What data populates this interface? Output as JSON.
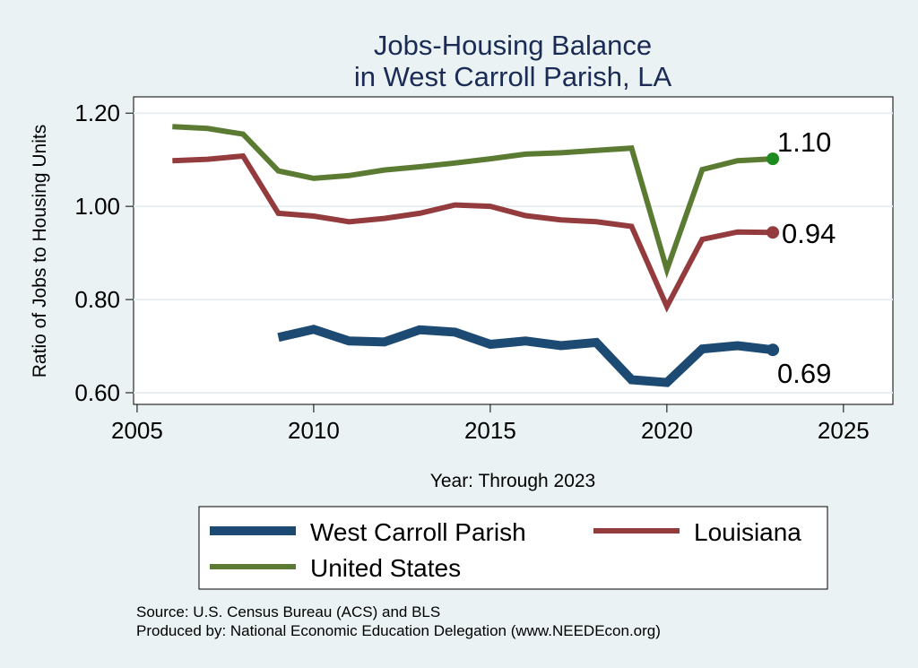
{
  "chart_data": {
    "type": "line",
    "title": [
      "Jobs-Housing Balance",
      "in West Carroll Parish, LA"
    ],
    "xlabel": "Year: Through 2023",
    "ylabel": "Ratio of Jobs to Housing Units",
    "xlim": [
      2004.9,
      2026.4
    ],
    "ylim": [
      0.575,
      1.235
    ],
    "xticks": [
      2005,
      2010,
      2015,
      2020,
      2025
    ],
    "yticks": [
      0.6,
      0.8,
      1.0,
      1.2
    ],
    "ytick_labels": [
      "0.60",
      "0.80",
      "1.00",
      "1.20"
    ],
    "grid": "horizontal",
    "legend_position": "bottom",
    "series": [
      {
        "name": "West Carroll Parish",
        "color": "#1c4a72",
        "end_label": "0.69",
        "x": [
          2009,
          2010,
          2011,
          2012,
          2013,
          2014,
          2015,
          2016,
          2017,
          2018,
          2019,
          2020,
          2021,
          2022,
          2023
        ],
        "y": [
          0.719,
          0.736,
          0.711,
          0.709,
          0.735,
          0.73,
          0.704,
          0.711,
          0.701,
          0.708,
          0.628,
          0.622,
          0.694,
          0.701,
          0.692
        ]
      },
      {
        "name": "Louisiana",
        "color": "#943b3d",
        "end_label": "0.94",
        "x": [
          2006,
          2007,
          2008,
          2009,
          2010,
          2011,
          2012,
          2013,
          2014,
          2015,
          2016,
          2017,
          2018,
          2019,
          2020,
          2021,
          2022,
          2023
        ],
        "y": [
          1.098,
          1.101,
          1.108,
          0.985,
          0.979,
          0.967,
          0.974,
          0.985,
          1.003,
          1.0,
          0.98,
          0.971,
          0.967,
          0.957,
          0.785,
          0.929,
          0.945,
          0.944
        ]
      },
      {
        "name": "United States",
        "color": "#5b7b32",
        "marker_color": "#1f8a1f",
        "end_label": "1.10",
        "x": [
          2006,
          2007,
          2008,
          2009,
          2010,
          2011,
          2012,
          2013,
          2014,
          2015,
          2016,
          2017,
          2018,
          2019,
          2020,
          2021,
          2022,
          2023
        ],
        "y": [
          1.171,
          1.167,
          1.155,
          1.076,
          1.06,
          1.066,
          1.078,
          1.085,
          1.093,
          1.102,
          1.112,
          1.115,
          1.12,
          1.125,
          0.864,
          1.079,
          1.098,
          1.102
        ]
      }
    ]
  },
  "legend": {
    "items": [
      "West Carroll Parish",
      "Louisiana",
      "United States"
    ]
  },
  "notes": {
    "source": "Source: U.S. Census Bureau (ACS) and BLS",
    "produced_by": "Produced by: National Economic Education Delegation (www.NEEDEcon.org)"
  }
}
